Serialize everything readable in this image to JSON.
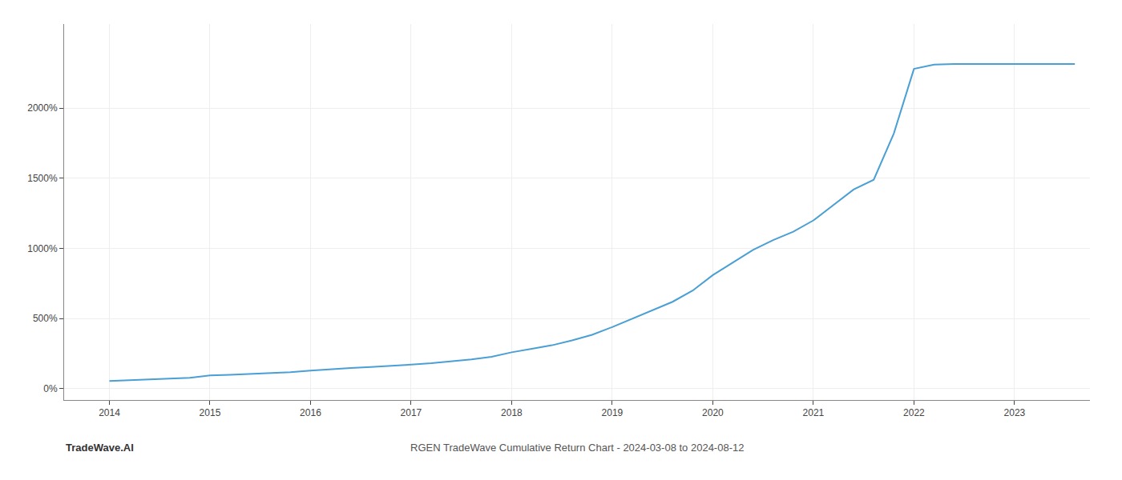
{
  "chart_data": {
    "type": "line",
    "color": "#4a9fd4",
    "x": [
      2014.0,
      2014.2,
      2014.4,
      2014.6,
      2014.8,
      2015.0,
      2015.2,
      2015.4,
      2015.6,
      2015.8,
      2016.0,
      2016.2,
      2016.4,
      2016.6,
      2016.8,
      2017.0,
      2017.2,
      2017.4,
      2017.6,
      2017.8,
      2018.0,
      2018.2,
      2018.4,
      2018.6,
      2018.8,
      2019.0,
      2019.2,
      2019.4,
      2019.6,
      2019.8,
      2020.0,
      2020.2,
      2020.4,
      2020.6,
      2020.8,
      2021.0,
      2021.2,
      2021.4,
      2021.6,
      2021.8,
      2022.0,
      2022.2,
      2022.4,
      2022.6,
      2022.8,
      2023.0,
      2023.2,
      2023.4,
      2023.6
    ],
    "values": [
      55,
      62,
      68,
      72,
      78,
      95,
      100,
      105,
      110,
      118,
      130,
      140,
      148,
      155,
      162,
      172,
      182,
      195,
      210,
      228,
      260,
      285,
      310,
      345,
      385,
      440,
      500,
      560,
      620,
      700,
      810,
      900,
      990,
      1060,
      1120,
      1200,
      1310,
      1420,
      1490,
      1820,
      2280,
      2310,
      2315,
      2315,
      2315,
      2315,
      2315,
      2315,
      2315
    ],
    "xlim": [
      2013.55,
      2023.75
    ],
    "xticks": [
      2014,
      2015,
      2016,
      2017,
      2018,
      2019,
      2020,
      2021,
      2022,
      2023
    ],
    "ylim": [
      -80,
      2600
    ],
    "yticks": [
      {
        "value": 0,
        "label": "0%"
      },
      {
        "value": 500,
        "label": "500%"
      },
      {
        "value": 1000,
        "label": "1000%"
      },
      {
        "value": 1500,
        "label": "1500%"
      },
      {
        "value": 2000,
        "label": "2000%"
      }
    ],
    "grid": true,
    "annotations": [
      "TradeWave.AI",
      "RGEN TradeWave Cumulative Return Chart - 2024-03-08 to 2024-08-12"
    ]
  }
}
